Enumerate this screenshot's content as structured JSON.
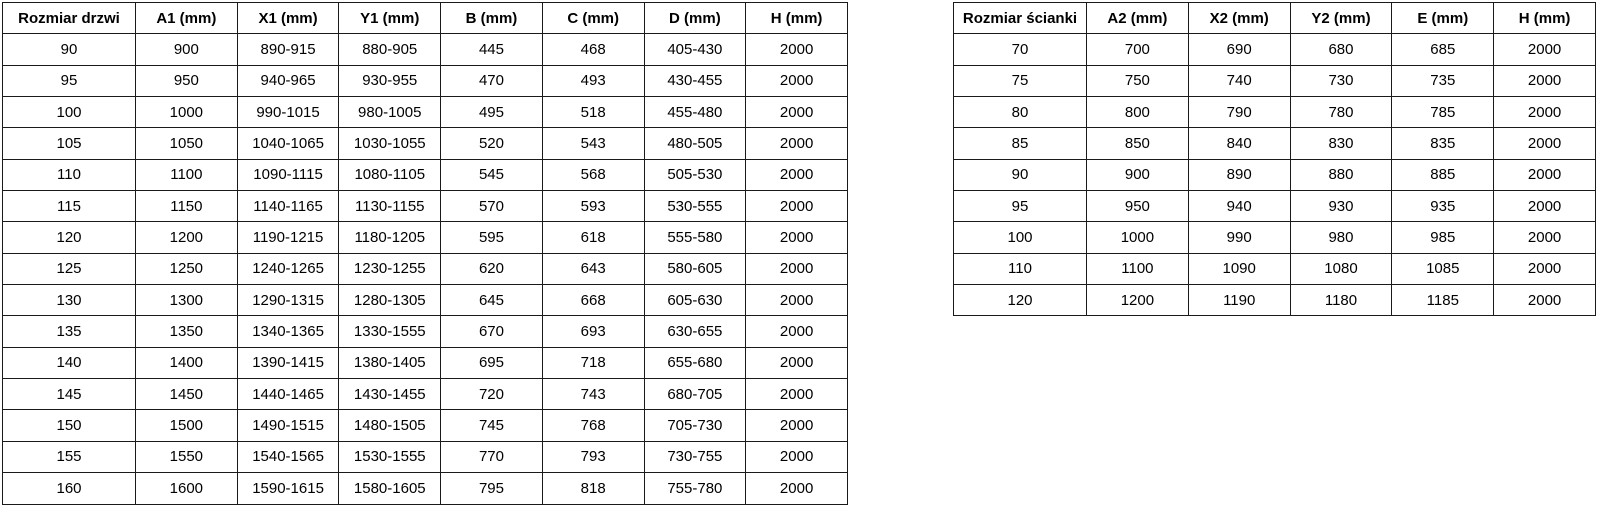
{
  "colors": {
    "background": "#ffffff",
    "border": "#1a1a1a",
    "text": "#000000"
  },
  "door_table": {
    "headers": [
      "Rozmiar drzwi",
      "A1 (mm)",
      "X1 (mm)",
      "Y1 (mm)",
      "B (mm)",
      "C (mm)",
      "D (mm)",
      "H (mm)"
    ],
    "rows": [
      [
        "90",
        "900",
        "890-915",
        "880-905",
        "445",
        "468",
        "405-430",
        "2000"
      ],
      [
        "95",
        "950",
        "940-965",
        "930-955",
        "470",
        "493",
        "430-455",
        "2000"
      ],
      [
        "100",
        "1000",
        "990-1015",
        "980-1005",
        "495",
        "518",
        "455-480",
        "2000"
      ],
      [
        "105",
        "1050",
        "1040-1065",
        "1030-1055",
        "520",
        "543",
        "480-505",
        "2000"
      ],
      [
        "110",
        "1100",
        "1090-1115",
        "1080-1105",
        "545",
        "568",
        "505-530",
        "2000"
      ],
      [
        "115",
        "1150",
        "1140-1165",
        "1130-1155",
        "570",
        "593",
        "530-555",
        "2000"
      ],
      [
        "120",
        "1200",
        "1190-1215",
        "1180-1205",
        "595",
        "618",
        "555-580",
        "2000"
      ],
      [
        "125",
        "1250",
        "1240-1265",
        "1230-1255",
        "620",
        "643",
        "580-605",
        "2000"
      ],
      [
        "130",
        "1300",
        "1290-1315",
        "1280-1305",
        "645",
        "668",
        "605-630",
        "2000"
      ],
      [
        "135",
        "1350",
        "1340-1365",
        "1330-1555",
        "670",
        "693",
        "630-655",
        "2000"
      ],
      [
        "140",
        "1400",
        "1390-1415",
        "1380-1405",
        "695",
        "718",
        "655-680",
        "2000"
      ],
      [
        "145",
        "1450",
        "1440-1465",
        "1430-1455",
        "720",
        "743",
        "680-705",
        "2000"
      ],
      [
        "150",
        "1500",
        "1490-1515",
        "1480-1505",
        "745",
        "768",
        "705-730",
        "2000"
      ],
      [
        "155",
        "1550",
        "1540-1565",
        "1530-1555",
        "770",
        "793",
        "730-755",
        "2000"
      ],
      [
        "160",
        "1600",
        "1590-1615",
        "1580-1605",
        "795",
        "818",
        "755-780",
        "2000"
      ]
    ]
  },
  "wall_table": {
    "headers": [
      "Rozmiar ścianki",
      "A2 (mm)",
      "X2 (mm)",
      "Y2 (mm)",
      "E (mm)",
      "H (mm)"
    ],
    "rows": [
      [
        "70",
        "700",
        "690",
        "680",
        "685",
        "2000"
      ],
      [
        "75",
        "750",
        "740",
        "730",
        "735",
        "2000"
      ],
      [
        "80",
        "800",
        "790",
        "780",
        "785",
        "2000"
      ],
      [
        "85",
        "850",
        "840",
        "830",
        "835",
        "2000"
      ],
      [
        "90",
        "900",
        "890",
        "880",
        "885",
        "2000"
      ],
      [
        "95",
        "950",
        "940",
        "930",
        "935",
        "2000"
      ],
      [
        "100",
        "1000",
        "990",
        "980",
        "985",
        "2000"
      ],
      [
        "110",
        "1100",
        "1090",
        "1080",
        "1085",
        "2000"
      ],
      [
        "120",
        "1200",
        "1190",
        "1180",
        "1185",
        "2000"
      ]
    ]
  }
}
